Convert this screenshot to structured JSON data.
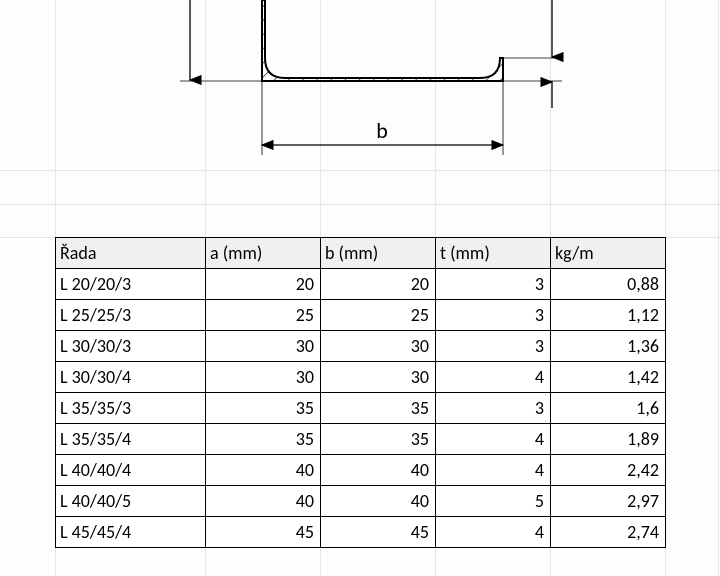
{
  "diagram": {
    "label_b": "b",
    "hatch_color": "#000000",
    "outline_color": "#000000",
    "dimension_color": "#000000",
    "arrow_size": 8
  },
  "table": {
    "columns": [
      "Řada",
      "a (mm)",
      "b (mm)",
      "t (mm)",
      "kg/m"
    ],
    "rows": [
      [
        "L 20/20/3",
        "20",
        "20",
        "3",
        "0,88"
      ],
      [
        "L 25/25/3",
        "25",
        "25",
        "3",
        "1,12"
      ],
      [
        "L 30/30/3",
        "30",
        "30",
        "3",
        "1,36"
      ],
      [
        "L 30/30/4",
        "30",
        "30",
        "4",
        "1,42"
      ],
      [
        "L 35/35/3",
        "35",
        "35",
        "3",
        "1,6"
      ],
      [
        "L 35/35/4",
        "35",
        "35",
        "4",
        "1,89"
      ],
      [
        "L 40/40/4",
        "40",
        "40",
        "4",
        "2,42"
      ],
      [
        "L 40/40/5",
        "40",
        "40",
        "5",
        "2,97"
      ],
      [
        "L 45/45/4",
        "45",
        "45",
        "4",
        "2,74"
      ]
    ],
    "header_bg": "#f0f0ee",
    "border_color": "#000000",
    "font_family": "Calibri",
    "font_size_pt": 14
  },
  "sheet": {
    "gridline_color": "#e6e6e2"
  }
}
